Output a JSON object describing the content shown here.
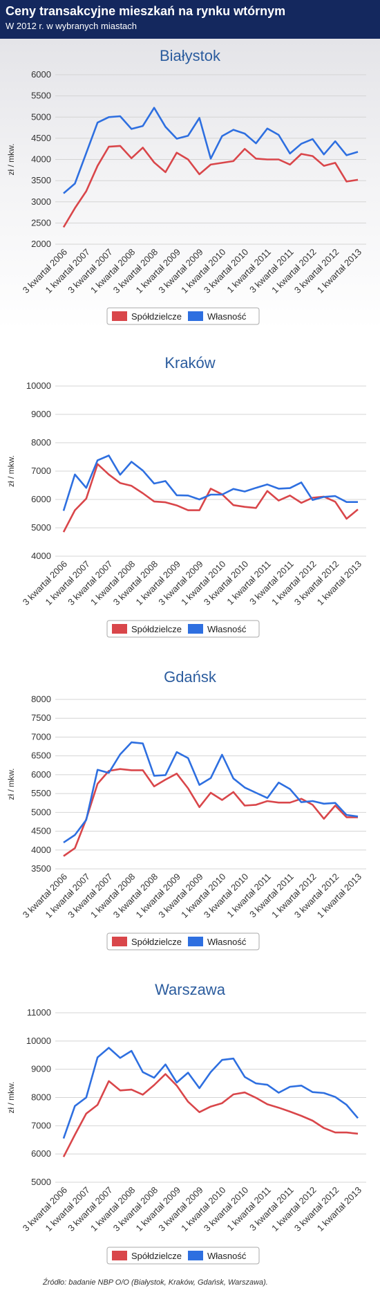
{
  "header": {
    "title": "Ceny transakcyjne mieszkań na rynku wtórnym",
    "subtitle": "W 2012 r.  w wybranych miastach"
  },
  "footer": {
    "source": "Źródło: badanie NBP O/O (Białystok, Kraków, Gdańsk, Warszawa)."
  },
  "colors": {
    "spoldzielcze": "#d9464a",
    "wlasnosc": "#2e6fe0",
    "title": "#2b5c9e",
    "grid": "#d4d4d4"
  },
  "chart_data": [
    {
      "type": "line",
      "title": "Białystok",
      "ylabel": "zł / mkw.",
      "ylim": [
        2000,
        6000
      ],
      "yticks": [
        2000,
        2500,
        3000,
        3500,
        4000,
        4500,
        5000,
        5500,
        6000
      ],
      "xticklabels": [
        "3 kwartał 2006",
        "1 kwartał 2007",
        "3 kwartał 2007",
        "1 kwartał 2008",
        "3 kwartał 2008",
        "1 kwartał 2009",
        "3 kwartał 2009",
        "1 kwartał 2010",
        "3 kwartał 2010",
        "1 kwartał 2011",
        "3 kwartał 2011",
        "1 kwartał 2012",
        "3 kwartał 2012",
        "1 kwartał 2013"
      ],
      "legend": "bottom",
      "grid": true,
      "series": [
        {
          "name": "Spółdzielcze",
          "values": [
            2400,
            2850,
            3250,
            3850,
            4300,
            4320,
            4030,
            4280,
            3930,
            3700,
            4160,
            4000,
            3650,
            3880,
            3920,
            3960,
            4250,
            4020,
            4000,
            4000,
            3880,
            4130,
            4080,
            3850,
            3920,
            3480,
            3520
          ]
        },
        {
          "name": "Własność",
          "values": [
            3200,
            3430,
            4150,
            4870,
            5000,
            5020,
            4720,
            4790,
            5220,
            4770,
            4490,
            4560,
            4980,
            4020,
            4550,
            4700,
            4610,
            4380,
            4730,
            4580,
            4140,
            4370,
            4480,
            4120,
            4430,
            4100,
            4180
          ]
        }
      ]
    },
    {
      "type": "line",
      "title": "Kraków",
      "ylabel": "zł / mkw.",
      "ylim": [
        4000,
        10000
      ],
      "yticks": [
        4000,
        5000,
        6000,
        7000,
        8000,
        9000,
        10000
      ],
      "xticklabels": [
        "3 kwartał 2006",
        "1 kwartał 2007",
        "3 kwartał 2007",
        "1 kwartał 2008",
        "3 kwartał 2008",
        "1 kwartał 2009",
        "3 kwartał 2009",
        "1 kwartał 2010",
        "3 kwartał 2010",
        "1 kwartał 2011",
        "3 kwartał 2011",
        "1 kwartał 2012",
        "3 kwartał 2012",
        "1 kwartał 2013"
      ],
      "legend": "bottom",
      "grid": true,
      "series": [
        {
          "name": "Spółdzielcze",
          "values": [
            4850,
            5620,
            6030,
            7250,
            6880,
            6580,
            6480,
            6220,
            5930,
            5900,
            5790,
            5620,
            5620,
            6380,
            6180,
            5800,
            5740,
            5700,
            6300,
            5960,
            6140,
            5880,
            6060,
            6100,
            5920,
            5320,
            5650
          ]
        },
        {
          "name": "Własność",
          "values": [
            5600,
            6880,
            6410,
            7380,
            7550,
            6870,
            7330,
            7020,
            6560,
            6650,
            6150,
            6140,
            6000,
            6170,
            6170,
            6370,
            6280,
            6410,
            6530,
            6380,
            6400,
            6600,
            5980,
            6090,
            6120,
            5910,
            5910
          ]
        }
      ]
    },
    {
      "type": "line",
      "title": "Gdańsk",
      "ylabel": "zł / mkw.",
      "ylim": [
        3500,
        8000
      ],
      "yticks": [
        3500,
        4000,
        4500,
        5000,
        5500,
        6000,
        6500,
        7000,
        7500,
        8000
      ],
      "xticklabels": [
        "3 kwartał 2006",
        "1 kwartał 2007",
        "3 kwartał 2007",
        "1 kwartał 2008",
        "3 kwartał 2008",
        "1 kwartał 2009",
        "3 kwartał 2009",
        "1 kwartał 2010",
        "3 kwartał 2010",
        "1 kwartał 2011",
        "3 kwartał 2011",
        "1 kwartał 2012",
        "3 kwartał 2012",
        "1 kwartał 2013"
      ],
      "legend": "bottom",
      "grid": true,
      "series": [
        {
          "name": "Spółdzielcze",
          "values": [
            3840,
            4050,
            4820,
            5760,
            6100,
            6150,
            6120,
            6120,
            5690,
            5870,
            6030,
            5640,
            5140,
            5520,
            5330,
            5540,
            5180,
            5200,
            5300,
            5260,
            5260,
            5360,
            5200,
            4830,
            5180,
            4870,
            4870
          ]
        },
        {
          "name": "Własność",
          "values": [
            4200,
            4400,
            4800,
            6130,
            6050,
            6540,
            6860,
            6830,
            5970,
            5990,
            6600,
            6440,
            5730,
            5910,
            6530,
            5900,
            5660,
            5520,
            5380,
            5790,
            5620,
            5270,
            5300,
            5230,
            5250,
            4930,
            4890
          ]
        }
      ]
    },
    {
      "type": "line",
      "title": "Warszawa",
      "ylabel": "zł / mkw.",
      "ylim": [
        5000,
        11000
      ],
      "yticks": [
        5000,
        6000,
        7000,
        8000,
        9000,
        10000,
        11000
      ],
      "xticklabels": [
        "3 kwartał 2006",
        "1 kwartał 2007",
        "3 kwartał 2007",
        "1 kwartał 2008",
        "3 kwartał 2008",
        "1 kwartał 2009",
        "3 kwartał 2009",
        "1 kwartał 2010",
        "3 kwartał 2010",
        "1 kwartał 2011",
        "3 kwartał 2011",
        "1 kwartał 2012",
        "3 kwartał 2012",
        "1 kwartał 2013"
      ],
      "legend": "bottom",
      "grid": true,
      "series": [
        {
          "name": "Spółdzielcze",
          "values": [
            5900,
            6680,
            7430,
            7740,
            8580,
            8250,
            8280,
            8100,
            8440,
            8830,
            8420,
            7850,
            7480,
            7680,
            7800,
            8110,
            8180,
            7990,
            7760,
            7640,
            7500,
            7350,
            7180,
            6920,
            6760,
            6760,
            6720
          ]
        },
        {
          "name": "Własność",
          "values": [
            6550,
            7700,
            8000,
            9420,
            9760,
            9400,
            9650,
            8900,
            8700,
            9170,
            8530,
            8880,
            8330,
            8900,
            9330,
            9380,
            8730,
            8500,
            8450,
            8170,
            8380,
            8420,
            8190,
            8160,
            8020,
            7740,
            7270
          ]
        }
      ]
    }
  ]
}
